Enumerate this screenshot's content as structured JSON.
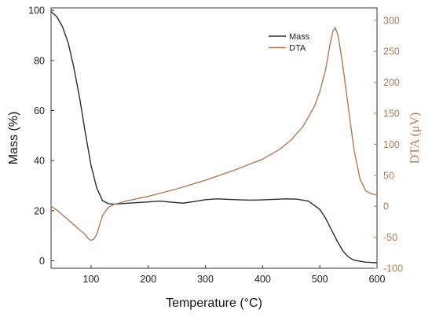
{
  "chart_data": {
    "type": "line",
    "xlabel": "Temperature (°C)",
    "ylabel": "Mass (%)",
    "y2label": "DTA (μV)",
    "xlim": [
      30,
      600
    ],
    "ylim": [
      -3,
      101
    ],
    "y2lim": [
      -100,
      320
    ],
    "x_ticks": [
      100,
      200,
      300,
      400,
      500,
      600
    ],
    "y_ticks": [
      0,
      20,
      40,
      60,
      80,
      100
    ],
    "y2_ticks": [
      -100,
      -50,
      0,
      50,
      100,
      150,
      200,
      250,
      300
    ],
    "legend_position": "top-right",
    "colors": {
      "mass": "#2b2b2b",
      "dta": "#b07a58",
      "right_axis": "#b07a58"
    },
    "series": [
      {
        "name": "Mass",
        "axis": "left",
        "color": "#2b2b2b",
        "x": [
          30,
          40,
          50,
          60,
          70,
          80,
          90,
          100,
          110,
          120,
          130,
          140,
          160,
          180,
          200,
          220,
          240,
          260,
          280,
          300,
          320,
          340,
          360,
          380,
          400,
          420,
          440,
          460,
          480,
          500,
          510,
          520,
          530,
          540,
          550,
          560,
          580,
          600
        ],
        "values": [
          99.5,
          97.5,
          93.5,
          87,
          77,
          65,
          51,
          38,
          29,
          24,
          22.8,
          22.6,
          22.9,
          23.2,
          23.5,
          23.8,
          23.4,
          23,
          23.6,
          24.4,
          24.7,
          24.5,
          24.3,
          24.2,
          24.3,
          24.5,
          24.7,
          24.6,
          23.8,
          20.5,
          17,
          12.5,
          8,
          4,
          1.5,
          0.2,
          -0.6,
          -0.8
        ]
      },
      {
        "name": "DTA",
        "axis": "right",
        "color": "#b07a58",
        "x": [
          30,
          40,
          50,
          60,
          70,
          80,
          90,
          95,
          100,
          105,
          110,
          115,
          120,
          130,
          140,
          160,
          180,
          200,
          250,
          300,
          350,
          400,
          430,
          450,
          470,
          490,
          500,
          510,
          518,
          523,
          527,
          532,
          540,
          550,
          560,
          570,
          580,
          590,
          600
        ],
        "values": [
          0,
          -6,
          -14,
          -22,
          -30,
          -38,
          -46,
          -52,
          -55,
          -53,
          -45,
          -30,
          -15,
          -2,
          3,
          8,
          12,
          16,
          28,
          42,
          58,
          76,
          92,
          107,
          128,
          160,
          185,
          220,
          262,
          283,
          288,
          275,
          228,
          158,
          90,
          45,
          25,
          20,
          18
        ]
      }
    ]
  }
}
